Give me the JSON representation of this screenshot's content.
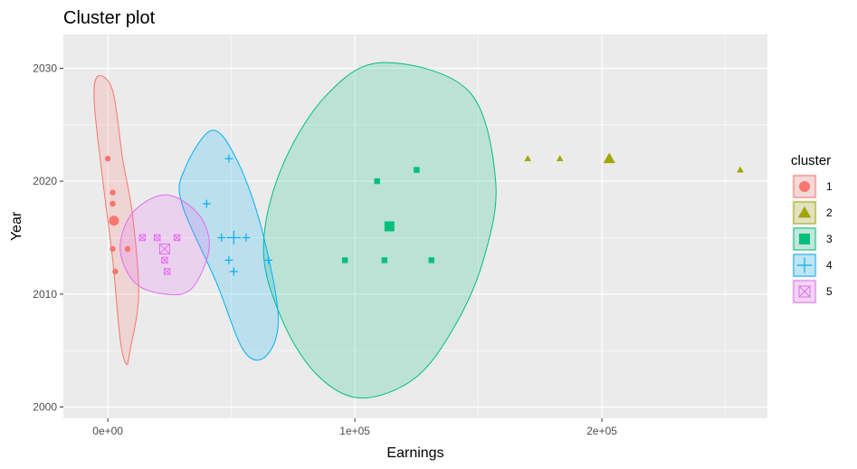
{
  "chart_data": {
    "type": "scatter",
    "title": "Cluster plot",
    "xlabel": "Earnings",
    "ylabel": "Year",
    "xlim": [
      -18000,
      267000
    ],
    "ylim": [
      1999,
      2033
    ],
    "x_ticks": [
      {
        "value": 0,
        "label": "0e+00"
      },
      {
        "value": 100000,
        "label": "1e+05"
      },
      {
        "value": 200000,
        "label": "2e+05"
      }
    ],
    "y_ticks": [
      {
        "value": 2000,
        "label": "2000"
      },
      {
        "value": 2010,
        "label": "2010"
      },
      {
        "value": 2020,
        "label": "2020"
      },
      {
        "value": 2030,
        "label": "2030"
      }
    ],
    "grid": true,
    "legend": {
      "title": "cluster",
      "position": "right"
    },
    "clusters": [
      {
        "name": "1",
        "color": "#F8766D",
        "shape": "circle",
        "center": {
          "x": 2500,
          "y": 2016.5
        },
        "points": [
          {
            "x": 0,
            "y": 2022
          },
          {
            "x": 2000,
            "y": 2019
          },
          {
            "x": 2000,
            "y": 2018
          },
          {
            "x": 2000,
            "y": 2014
          },
          {
            "x": 8000,
            "y": 2014
          },
          {
            "x": 3000,
            "y": 2012
          }
        ],
        "ellipse": [
          [
            -4000,
            2029.3
          ],
          [
            2000,
            2028
          ],
          [
            6000,
            2022
          ],
          [
            10000,
            2017
          ],
          [
            12500,
            2010
          ],
          [
            9000,
            2005
          ],
          [
            7500,
            2003.8
          ],
          [
            5000,
            2006
          ],
          [
            2000,
            2013
          ],
          [
            -2000,
            2020
          ],
          [
            -5500,
            2027
          ],
          [
            -4000,
            2029.3
          ]
        ]
      },
      {
        "name": "2",
        "color": "#A3A500",
        "shape": "triangle",
        "center": {
          "x": 203000,
          "y": 2022
        },
        "points": [
          {
            "x": 170000,
            "y": 2022
          },
          {
            "x": 183000,
            "y": 2022
          },
          {
            "x": 256000,
            "y": 2021
          }
        ],
        "ellipse": []
      },
      {
        "name": "3",
        "color": "#00BF7D",
        "shape": "square",
        "center": {
          "x": 114000,
          "y": 2016
        },
        "points": [
          {
            "x": 109000,
            "y": 2020
          },
          {
            "x": 125000,
            "y": 2021
          },
          {
            "x": 96000,
            "y": 2013
          },
          {
            "x": 112000,
            "y": 2013
          },
          {
            "x": 131000,
            "y": 2013
          }
        ],
        "ellipse": [
          [
            146000,
            2028
          ],
          [
            157000,
            2020
          ],
          [
            152000,
            2013
          ],
          [
            140000,
            2007
          ],
          [
            124000,
            2002.5
          ],
          [
            102000,
            2000.8
          ],
          [
            84000,
            2003
          ],
          [
            70000,
            2008
          ],
          [
            63000,
            2014
          ],
          [
            70000,
            2021
          ],
          [
            88000,
            2027.5
          ],
          [
            111000,
            2030.5
          ],
          [
            146000,
            2028
          ]
        ]
      },
      {
        "name": "4",
        "color": "#00B0F6",
        "shape": "plus",
        "center": {
          "x": 51000,
          "y": 2015
        },
        "points": [
          {
            "x": 49000,
            "y": 2022
          },
          {
            "x": 40000,
            "y": 2018
          },
          {
            "x": 46000,
            "y": 2015
          },
          {
            "x": 56000,
            "y": 2015
          },
          {
            "x": 49000,
            "y": 2013
          },
          {
            "x": 51000,
            "y": 2012
          },
          {
            "x": 65000,
            "y": 2013
          }
        ],
        "ellipse": [
          [
            42000,
            2024.5
          ],
          [
            52000,
            2022
          ],
          [
            62000,
            2016
          ],
          [
            69000,
            2008
          ],
          [
            64000,
            2004.5
          ],
          [
            55000,
            2005
          ],
          [
            44000,
            2011
          ],
          [
            30000,
            2018
          ],
          [
            31000,
            2021
          ],
          [
            42000,
            2024.5
          ]
        ]
      },
      {
        "name": "5",
        "color": "#E76BF3",
        "shape": "square-cross",
        "center": {
          "x": 23000,
          "y": 2014
        },
        "points": [
          {
            "x": 14000,
            "y": 2015
          },
          {
            "x": 20000,
            "y": 2015
          },
          {
            "x": 28000,
            "y": 2015
          },
          {
            "x": 23000,
            "y": 2013
          },
          {
            "x": 24000,
            "y": 2012
          }
        ],
        "ellipse": [
          [
            23500,
            2018.8
          ],
          [
            37000,
            2017
          ],
          [
            41000,
            2014
          ],
          [
            34000,
            2010.5
          ],
          [
            23500,
            2010
          ],
          [
            11000,
            2011
          ],
          [
            5000,
            2014
          ],
          [
            10000,
            2017.2
          ],
          [
            23500,
            2018.8
          ]
        ]
      }
    ]
  }
}
